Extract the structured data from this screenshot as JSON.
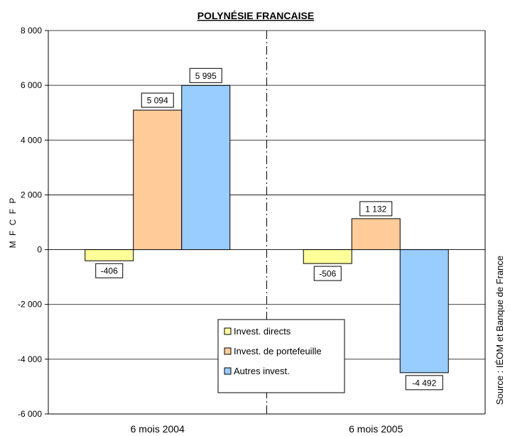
{
  "chart_data": {
    "type": "bar",
    "title": "POLYNÉSIE FRANCAISE",
    "ylabel": "M F C F P",
    "source": "Source : IÉOM et Banque de France",
    "categories": [
      "6 mois 2004",
      "6 mois 2005"
    ],
    "series": [
      {
        "name": "Invest. directs",
        "color": "#FFFF99",
        "values": [
          -406,
          -506
        ],
        "labels": [
          "-406",
          "-506"
        ]
      },
      {
        "name": "Invest. de portefeuille",
        "color": "#FFCC99",
        "values": [
          5094,
          1132
        ],
        "labels": [
          "5 094",
          "1 132"
        ]
      },
      {
        "name": "Autres invest.",
        "color": "#99CCFF",
        "values": [
          5995,
          -4492
        ],
        "labels": [
          "5 995",
          "-4 492"
        ]
      }
    ],
    "ylim": [
      -6000,
      8000
    ],
    "yticks": [
      -6000,
      -4000,
      -2000,
      0,
      2000,
      4000,
      6000,
      8000
    ],
    "ytick_labels": [
      "-6 000",
      "-4 000",
      "-2 000",
      "0",
      "2 000",
      "4 000",
      "6 000",
      "8 000"
    ],
    "grid": true,
    "legend_position": "bottom-center",
    "category_separator": "dashed"
  }
}
